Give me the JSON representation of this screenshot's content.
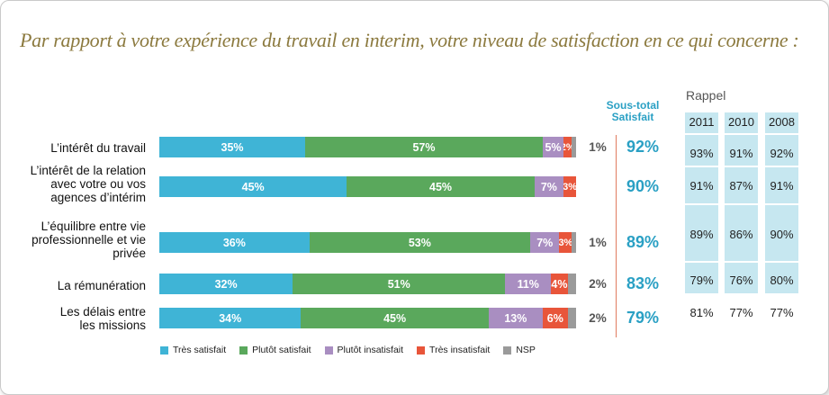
{
  "title": "Par rapport à votre expérience du travail en interim, votre niveau de satisfaction en ce qui concerne :",
  "colors": {
    "tres_satisfait": "#3fb4d6",
    "plutot_satisfait": "#5aa85c",
    "plutot_insatisfait": "#a98ec1",
    "tres_insatisfait": "#e8553a",
    "nsp": "#9a9a9a",
    "soustotal": "#2aa0c4",
    "rappel_bg": "#c6e7f0",
    "title": "#8c7a3f"
  },
  "soustotal_header": [
    "Sous-total",
    "Satisfait"
  ],
  "rappel_label": "Rappel",
  "years": [
    "2011",
    "2010",
    "2008"
  ],
  "chart_data": {
    "type": "bar",
    "orientation": "horizontal",
    "stacked": true,
    "title": "Par rapport à votre expérience du travail en interim, votre niveau de satisfaction en ce qui concerne :",
    "categories": [
      [
        "L’intérêt du travail"
      ],
      [
        "L’intérêt de la relation",
        "avec votre ou vos",
        "agences d’intérim"
      ],
      [
        "L’équilibre entre vie",
        "professionnelle et vie",
        "privée"
      ],
      [
        "La rémunération"
      ],
      [
        "Les délais entre",
        "les missions"
      ]
    ],
    "series": [
      {
        "name": "Très satisfait",
        "values": [
          35,
          45,
          36,
          32,
          34
        ],
        "labels": [
          "35%",
          "45%",
          "36%",
          "32%",
          "34%"
        ]
      },
      {
        "name": "Plutôt satisfait",
        "values": [
          57,
          45,
          53,
          51,
          45
        ],
        "labels": [
          "57%",
          "45%",
          "53%",
          "51%",
          "45%"
        ]
      },
      {
        "name": "Plutôt insatisfait",
        "values": [
          5,
          7,
          7,
          11,
          13
        ],
        "labels": [
          "5%",
          "7%",
          "7%",
          "11%",
          "13%"
        ]
      },
      {
        "name": "Très insatisfait",
        "values": [
          2,
          3,
          3,
          4,
          6
        ],
        "labels": [
          "2%",
          "3%",
          "3%",
          "4%",
          "6%"
        ]
      },
      {
        "name": "NSP",
        "values": [
          1,
          0,
          1,
          2,
          2
        ],
        "labels": [
          "",
          "",
          "",
          "",
          ""
        ]
      }
    ],
    "nsp_outside_labels": [
      "1%",
      "",
      "1%",
      "2%",
      "2%"
    ],
    "soustotal_satisfait": [
      "92%",
      "90%",
      "89%",
      "83%",
      "79%"
    ],
    "rappel": [
      [
        "93%",
        "91%",
        "92%"
      ],
      [
        "91%",
        "87%",
        "91%"
      ],
      [
        "89%",
        "86%",
        "90%"
      ],
      [
        "79%",
        "76%",
        "80%"
      ],
      [
        "81%",
        "77%",
        "77%"
      ]
    ],
    "xlim": [
      0,
      100
    ],
    "legend_position": "bottom"
  }
}
